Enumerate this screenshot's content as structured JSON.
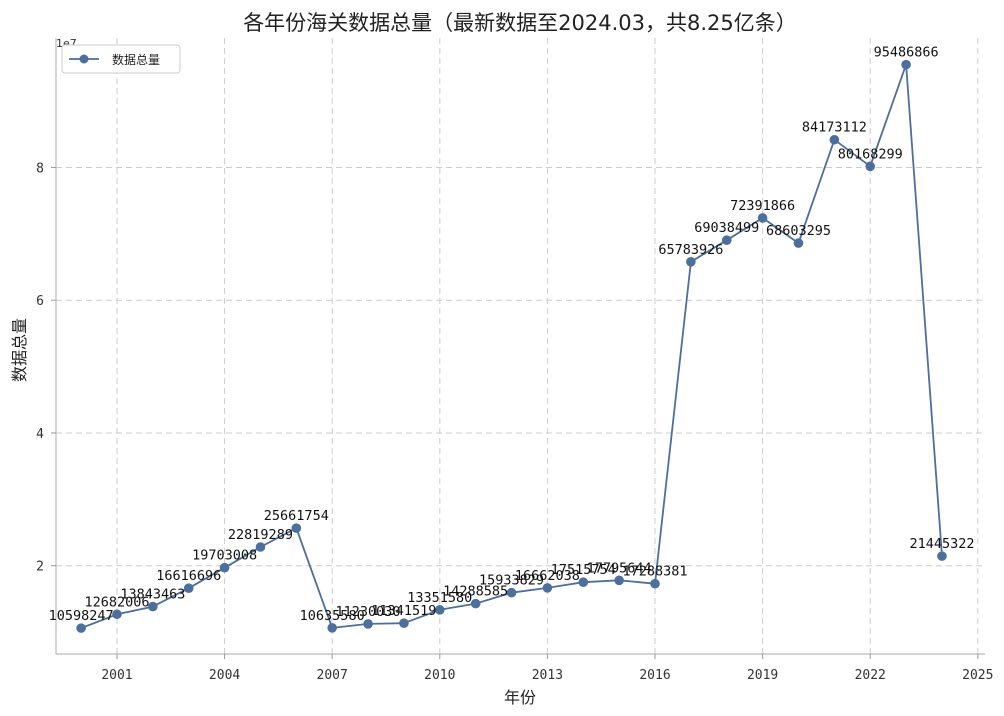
{
  "chart_data": {
    "type": "line",
    "title": "各年份海关数据总量（最新数据至2024.03，共8.25亿条）",
    "xlabel": "年份",
    "ylabel": "数据总量",
    "y_exponent_label": "1e7",
    "xlim": [
      1999.3,
      2025.2
    ],
    "ylim": [
      6700000,
      99500000
    ],
    "x_ticks": [
      2001,
      2004,
      2007,
      2010,
      2013,
      2016,
      2019,
      2022,
      2025
    ],
    "y_ticks": [
      20000000,
      40000000,
      60000000,
      80000000
    ],
    "y_tick_labels": [
      "2",
      "4",
      "6",
      "8"
    ],
    "grid": true,
    "legend_position": "top-left",
    "color": "#4c6f9c",
    "series": [
      {
        "name": "数据总量",
        "x": [
          2000,
          2001,
          2002,
          2003,
          2004,
          2005,
          2006,
          2007,
          2008,
          2009,
          2010,
          2011,
          2012,
          2013,
          2014,
          2015,
          2016,
          2017,
          2018,
          2019,
          2020,
          2021,
          2022,
          2023,
          2024
        ],
        "values": [
          10598247,
          12682006,
          13843463,
          16616696,
          19703008,
          22819289,
          25661754,
          10635580,
          11230030,
          11341519,
          13351580,
          14288585,
          15933829,
          16662038,
          17515754,
          17795644,
          17288381,
          65783926,
          69038499,
          72391866,
          68603295,
          84173112,
          80168299,
          95486866,
          21445322
        ],
        "labels": [
          "10598247",
          "12682006",
          "13843463",
          "16616696",
          "19703008",
          "22819289",
          "25661754",
          "10635580",
          "11230030",
          "11341519",
          "13351580",
          "14288585",
          "15933829",
          "16662038",
          "17515754",
          "17795644",
          "17288381",
          "65783926",
          "69038499",
          "72391866",
          "68603295",
          "84173112",
          "80168299",
          "95486866",
          "21445322"
        ]
      }
    ]
  }
}
